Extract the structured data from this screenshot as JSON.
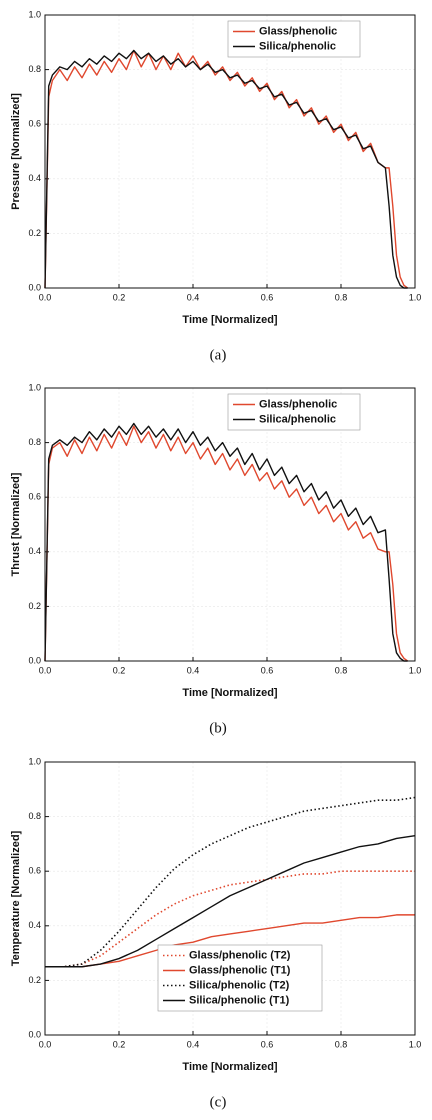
{
  "chart_data": [
    {
      "type": "line",
      "caption": "(a)",
      "xlabel": "Time [Normalized]",
      "ylabel": "Pressure [Normalized]",
      "xlim": [
        0,
        1
      ],
      "ylim": [
        0,
        1
      ],
      "xticks": [
        {
          "value": 0,
          "label": "0.0"
        },
        0.2,
        0.4,
        0.6,
        0.8,
        {
          "value": 1,
          "label": "1.0"
        }
      ],
      "yticks": [
        {
          "value": 0,
          "label": "0.0"
        },
        0.2,
        0.4,
        0.6,
        0.8,
        {
          "value": 1,
          "label": "1.0"
        }
      ],
      "grid": true,
      "legend": "upper right",
      "x": [
        0,
        0.01,
        0.02,
        0.04,
        0.06,
        0.08,
        0.1,
        0.12,
        0.14,
        0.16,
        0.18,
        0.2,
        0.22,
        0.24,
        0.26,
        0.28,
        0.3,
        0.32,
        0.34,
        0.36,
        0.38,
        0.4,
        0.42,
        0.44,
        0.46,
        0.48,
        0.5,
        0.52,
        0.54,
        0.56,
        0.58,
        0.6,
        0.62,
        0.64,
        0.66,
        0.68,
        0.7,
        0.72,
        0.74,
        0.76,
        0.78,
        0.8,
        0.82,
        0.84,
        0.86,
        0.88,
        0.9,
        0.92,
        0.93,
        0.94,
        0.95,
        0.96,
        0.97,
        0.98
      ],
      "series": [
        {
          "name": "Glass/phenolic",
          "color": "#e0482e",
          "dash": "solid",
          "values": [
            0,
            0.7,
            0.76,
            0.8,
            0.76,
            0.81,
            0.77,
            0.82,
            0.78,
            0.83,
            0.79,
            0.84,
            0.8,
            0.87,
            0.81,
            0.86,
            0.8,
            0.85,
            0.8,
            0.86,
            0.81,
            0.85,
            0.8,
            0.83,
            0.78,
            0.81,
            0.76,
            0.79,
            0.74,
            0.77,
            0.72,
            0.75,
            0.69,
            0.72,
            0.66,
            0.69,
            0.63,
            0.66,
            0.6,
            0.63,
            0.57,
            0.6,
            0.54,
            0.57,
            0.5,
            0.53,
            0.46,
            0.44,
            0.44,
            0.3,
            0.12,
            0.04,
            0.01,
            0
          ]
        },
        {
          "name": "Silica/phenolic",
          "color": "#111111",
          "dash": "solid",
          "values": [
            0,
            0.74,
            0.78,
            0.81,
            0.8,
            0.83,
            0.81,
            0.84,
            0.82,
            0.85,
            0.83,
            0.86,
            0.84,
            0.87,
            0.84,
            0.86,
            0.83,
            0.85,
            0.82,
            0.84,
            0.81,
            0.83,
            0.8,
            0.82,
            0.79,
            0.8,
            0.77,
            0.78,
            0.75,
            0.76,
            0.73,
            0.74,
            0.7,
            0.71,
            0.67,
            0.68,
            0.64,
            0.65,
            0.61,
            0.62,
            0.58,
            0.59,
            0.55,
            0.56,
            0.51,
            0.52,
            0.46,
            0.44,
            0.3,
            0.12,
            0.04,
            0.01,
            0,
            0
          ]
        }
      ]
    },
    {
      "type": "line",
      "caption": "(b)",
      "xlabel": "Time [Normalized]",
      "ylabel": "Thrust [Normalized]",
      "xlim": [
        0,
        1
      ],
      "ylim": [
        0,
        1
      ],
      "xticks": [
        {
          "value": 0,
          "label": "0.0"
        },
        0.2,
        0.4,
        0.6,
        0.8,
        {
          "value": 1,
          "label": "1.0"
        }
      ],
      "yticks": [
        {
          "value": 0,
          "label": "0.0"
        },
        0.2,
        0.4,
        0.6,
        0.8,
        {
          "value": 1,
          "label": "1.0"
        }
      ],
      "grid": true,
      "legend": "upper right",
      "x": [
        0,
        0.01,
        0.02,
        0.04,
        0.06,
        0.08,
        0.1,
        0.12,
        0.14,
        0.16,
        0.18,
        0.2,
        0.22,
        0.24,
        0.26,
        0.28,
        0.3,
        0.32,
        0.34,
        0.36,
        0.38,
        0.4,
        0.42,
        0.44,
        0.46,
        0.48,
        0.5,
        0.52,
        0.54,
        0.56,
        0.58,
        0.6,
        0.62,
        0.64,
        0.66,
        0.68,
        0.7,
        0.72,
        0.74,
        0.76,
        0.78,
        0.8,
        0.82,
        0.84,
        0.86,
        0.88,
        0.9,
        0.92,
        0.93,
        0.94,
        0.95,
        0.96,
        0.97,
        0.98
      ],
      "series": [
        {
          "name": "Glass/phenolic",
          "color": "#e0482e",
          "dash": "solid",
          "values": [
            0,
            0.72,
            0.78,
            0.8,
            0.75,
            0.81,
            0.76,
            0.82,
            0.77,
            0.83,
            0.78,
            0.84,
            0.79,
            0.86,
            0.8,
            0.84,
            0.78,
            0.83,
            0.77,
            0.82,
            0.76,
            0.8,
            0.74,
            0.78,
            0.72,
            0.76,
            0.7,
            0.74,
            0.68,
            0.72,
            0.66,
            0.69,
            0.63,
            0.66,
            0.6,
            0.63,
            0.57,
            0.6,
            0.54,
            0.57,
            0.51,
            0.54,
            0.48,
            0.51,
            0.45,
            0.47,
            0.41,
            0.4,
            0.4,
            0.28,
            0.1,
            0.03,
            0.01,
            0
          ]
        },
        {
          "name": "Silica/phenolic",
          "color": "#111111",
          "dash": "solid",
          "values": [
            0,
            0.74,
            0.79,
            0.81,
            0.79,
            0.82,
            0.8,
            0.84,
            0.81,
            0.85,
            0.82,
            0.86,
            0.83,
            0.87,
            0.83,
            0.86,
            0.82,
            0.85,
            0.81,
            0.85,
            0.8,
            0.84,
            0.79,
            0.82,
            0.77,
            0.8,
            0.75,
            0.78,
            0.72,
            0.76,
            0.7,
            0.74,
            0.68,
            0.71,
            0.65,
            0.68,
            0.62,
            0.65,
            0.59,
            0.62,
            0.56,
            0.59,
            0.53,
            0.56,
            0.5,
            0.53,
            0.47,
            0.48,
            0.3,
            0.1,
            0.03,
            0.01,
            0,
            0
          ]
        }
      ]
    },
    {
      "type": "line",
      "caption": "(c)",
      "xlabel": "Time [Normalized]",
      "ylabel": "Temperature [Normalized]",
      "xlim": [
        0,
        1
      ],
      "ylim": [
        0,
        1
      ],
      "xticks": [
        {
          "value": 0,
          "label": "0.0"
        },
        0.2,
        0.4,
        0.6,
        0.8,
        {
          "value": 1,
          "label": "1.0"
        }
      ],
      "yticks": [
        {
          "value": 0,
          "label": "0.0"
        },
        0.2,
        0.4,
        0.6,
        0.8,
        {
          "value": 1,
          "label": "1.0"
        }
      ],
      "grid": true,
      "legend": "lower center",
      "x": [
        0,
        0.05,
        0.1,
        0.15,
        0.2,
        0.25,
        0.3,
        0.35,
        0.4,
        0.45,
        0.5,
        0.55,
        0.6,
        0.65,
        0.7,
        0.75,
        0.8,
        0.85,
        0.9,
        0.95,
        1
      ],
      "series": [
        {
          "name": "Glass/phenolic (T2)",
          "color": "#e0482e",
          "dash": "dotted",
          "values": [
            0.25,
            0.25,
            0.26,
            0.29,
            0.34,
            0.39,
            0.44,
            0.48,
            0.51,
            0.53,
            0.55,
            0.56,
            0.57,
            0.58,
            0.59,
            0.59,
            0.6,
            0.6,
            0.6,
            0.6,
            0.6
          ]
        },
        {
          "name": "Glass/phenolic (T1)",
          "color": "#e0482e",
          "dash": "solid",
          "values": [
            0.25,
            0.25,
            0.25,
            0.26,
            0.27,
            0.29,
            0.31,
            0.33,
            0.34,
            0.36,
            0.37,
            0.38,
            0.39,
            0.4,
            0.41,
            0.41,
            0.42,
            0.43,
            0.43,
            0.44,
            0.44
          ]
        },
        {
          "name": "Silica/phenolic (T2)",
          "color": "#111111",
          "dash": "dotted",
          "values": [
            0.25,
            0.25,
            0.26,
            0.31,
            0.38,
            0.46,
            0.54,
            0.61,
            0.66,
            0.7,
            0.73,
            0.76,
            0.78,
            0.8,
            0.82,
            0.83,
            0.84,
            0.85,
            0.86,
            0.86,
            0.87
          ]
        },
        {
          "name": "Silica/phenolic (T1)",
          "color": "#111111",
          "dash": "solid",
          "values": [
            0.25,
            0.25,
            0.25,
            0.26,
            0.28,
            0.31,
            0.35,
            0.39,
            0.43,
            0.47,
            0.51,
            0.54,
            0.57,
            0.6,
            0.63,
            0.65,
            0.67,
            0.69,
            0.7,
            0.72,
            0.73
          ]
        }
      ]
    }
  ]
}
